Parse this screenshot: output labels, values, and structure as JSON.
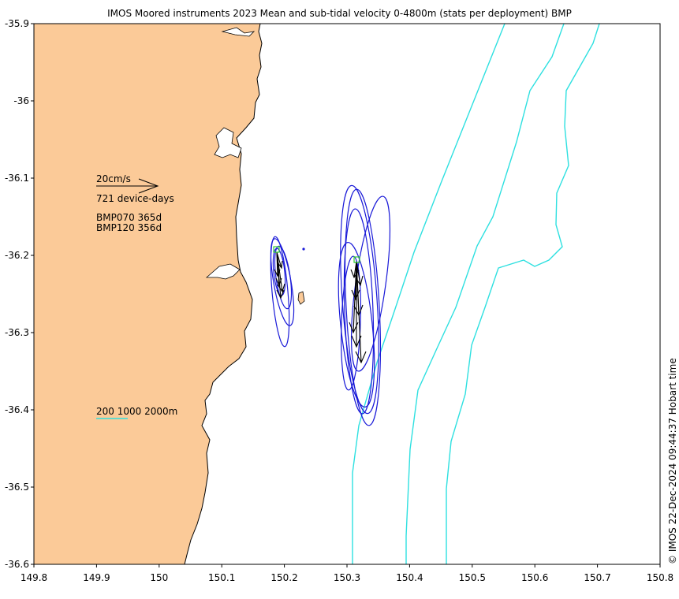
{
  "title": "IMOS Moored instruments 2023 Mean and sub-tidal velocity 0-4800m (stats per deployment) BMP",
  "side_label": "© IMOS 22-Dec-2024 09:44:37 Hobart time",
  "axes": {
    "x_ticks": [
      "149.8",
      "149.9",
      "150",
      "150.1",
      "150.2",
      "150.3",
      "150.4",
      "150.5",
      "150.6",
      "150.7",
      "150.8"
    ],
    "y_ticks": [
      "-35.9",
      "-36",
      "-36.1",
      "-36.2",
      "-36.3",
      "-36.4",
      "-36.5",
      "-36.6"
    ]
  },
  "legend": {
    "scale_label": "20cm/s",
    "device_days": "721 device-days",
    "deployments": [
      "BMP070 365d",
      "BMP120 356d"
    ],
    "isobaths": "200 1000 2000m"
  },
  "colors": {
    "land": "#fbca98",
    "isobath": "#2ee0e0",
    "ellipse": "#1a1ad8",
    "arrow": "#000000",
    "mooring_marker": "#33cc33"
  },
  "chart_data": {
    "type": "map",
    "lon_range": [
      149.8,
      150.8
    ],
    "lat_range": [
      -36.6,
      -35.9
    ],
    "moorings": [
      {
        "name": "BMP070",
        "lon": 150.19,
        "lat": -36.195,
        "days": 365
      },
      {
        "name": "BMP120",
        "lon": 150.317,
        "lat": -36.205,
        "days": 356
      }
    ]
  }
}
